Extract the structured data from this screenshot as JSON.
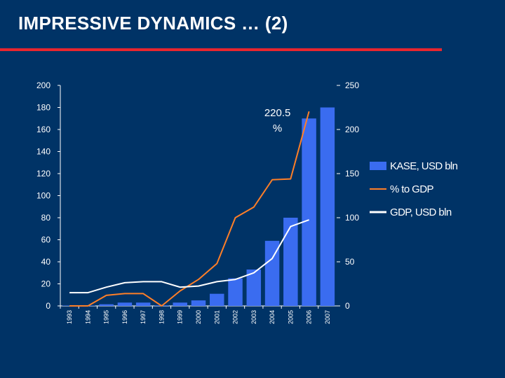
{
  "slide": {
    "title": "IMPRESSIVE DYNAMICS … (2)",
    "accent_color": "#e8262e",
    "background_color": "#003366"
  },
  "chart_data": {
    "type": "bar",
    "categories": [
      "1993",
      "1994",
      "1995",
      "1996",
      "1997",
      "1998",
      "1999",
      "2000",
      "2001",
      "2002",
      "2003",
      "2004",
      "2005",
      "2006",
      "2007"
    ],
    "left_axis": {
      "ylim": [
        0,
        200
      ],
      "ticks": [
        "0",
        "20",
        "40",
        "60",
        "80",
        "100",
        "120",
        "140",
        "160",
        "180",
        "200"
      ]
    },
    "right_axis": {
      "ylim": [
        0,
        250
      ],
      "ticks": [
        "0",
        "50",
        "100",
        "150",
        "200",
        "250"
      ]
    },
    "series": [
      {
        "name": "KASE, USD bln",
        "kind": "bar",
        "axis": "left",
        "color": "#3a6cf0",
        "values": [
          0,
          0.2,
          1.5,
          3,
          3,
          0.5,
          3,
          5,
          11,
          25,
          33,
          59,
          80,
          170,
          180
        ]
      },
      {
        "name": "% to GDP",
        "kind": "line",
        "axis": "right",
        "color": "#ff7f27",
        "values": [
          0,
          0,
          12,
          14,
          14,
          0,
          17,
          30,
          48,
          100,
          112,
          143,
          144,
          220.5,
          null
        ]
      },
      {
        "name": "GDP, USD bln",
        "kind": "line",
        "axis": "left",
        "color": "#ffffff",
        "values": [
          12,
          12,
          17,
          21,
          22,
          22,
          17,
          18,
          22,
          24,
          30,
          43,
          72,
          78,
          null
        ]
      }
    ],
    "annotations": [
      {
        "text_line1": "220.5",
        "text_line2": "%",
        "series": "% to GDP",
        "category": "2006"
      }
    ],
    "legend": {
      "placement": "right"
    },
    "grid": false
  }
}
